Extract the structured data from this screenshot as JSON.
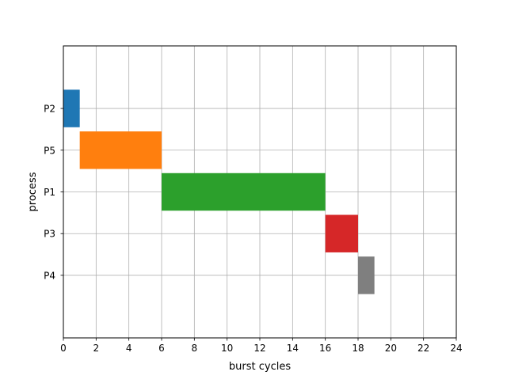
{
  "chart_data": {
    "type": "bar",
    "orientation": "horizontal",
    "chart_style": "gantt",
    "title": "",
    "xlabel": "burst cycles",
    "ylabel": "process",
    "xlim": [
      0,
      24
    ],
    "ylim": [
      -1.5,
      5.5
    ],
    "xticks": [
      0,
      2,
      4,
      6,
      8,
      10,
      12,
      14,
      16,
      18,
      20,
      22,
      24
    ],
    "yticks": [
      0,
      1,
      2,
      3,
      4
    ],
    "categories": [
      "P4",
      "P3",
      "P1",
      "P5",
      "P2"
    ],
    "grid": true,
    "bars": [
      {
        "process": "P2",
        "start": 0,
        "end": 1,
        "color": "#1f77b4"
      },
      {
        "process": "P5",
        "start": 1,
        "end": 6,
        "color": "#ff7f0e"
      },
      {
        "process": "P1",
        "start": 6,
        "end": 16,
        "color": "#2ca02c"
      },
      {
        "process": "P3",
        "start": 16,
        "end": 18,
        "color": "#d62728"
      },
      {
        "process": "P4",
        "start": 18,
        "end": 19,
        "color": "#7f7f7f"
      }
    ]
  }
}
